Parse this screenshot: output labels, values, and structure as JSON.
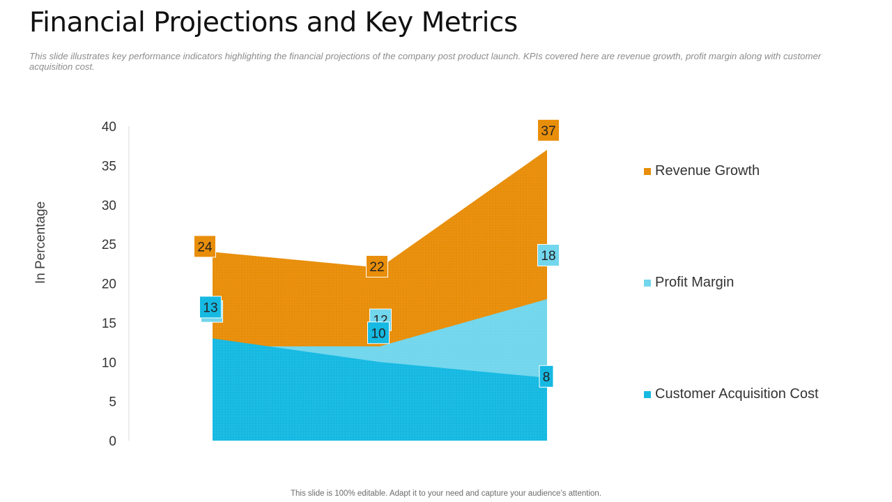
{
  "slide": {
    "title": "Financial Projections and Key Metrics",
    "subtitle": "This slide illustrates key performance indicators highlighting the financial projections of the company post product launch. KPIs covered here are revenue growth, profit margin along with customer acquisition cost.",
    "footer": "This slide is 100% editable. Adapt it to your need and capture your audience’s attention."
  },
  "colors": {
    "revenue": "#E88E0A",
    "profit": "#72D6EC",
    "cac": "#16B9E2",
    "axis": "#d9d9d9",
    "tick": "#333333"
  },
  "chart_data": {
    "type": "area",
    "title": "",
    "xlabel": "",
    "ylabel": "In Percentage",
    "ylim": [
      0,
      40
    ],
    "yticks": [
      0,
      5,
      10,
      15,
      20,
      25,
      30,
      35,
      40
    ],
    "grid": false,
    "legend_position": "right",
    "x": [
      1,
      2,
      3
    ],
    "series": [
      {
        "name": "Revenue Growth",
        "key": "revenue",
        "values": [
          24,
          22,
          37
        ]
      },
      {
        "name": "Profit Margin",
        "key": "profit",
        "values": [
          12,
          12,
          18
        ]
      },
      {
        "name": "Customer Acquisition Cost",
        "key": "cac",
        "values": [
          13,
          10,
          8
        ]
      }
    ]
  }
}
